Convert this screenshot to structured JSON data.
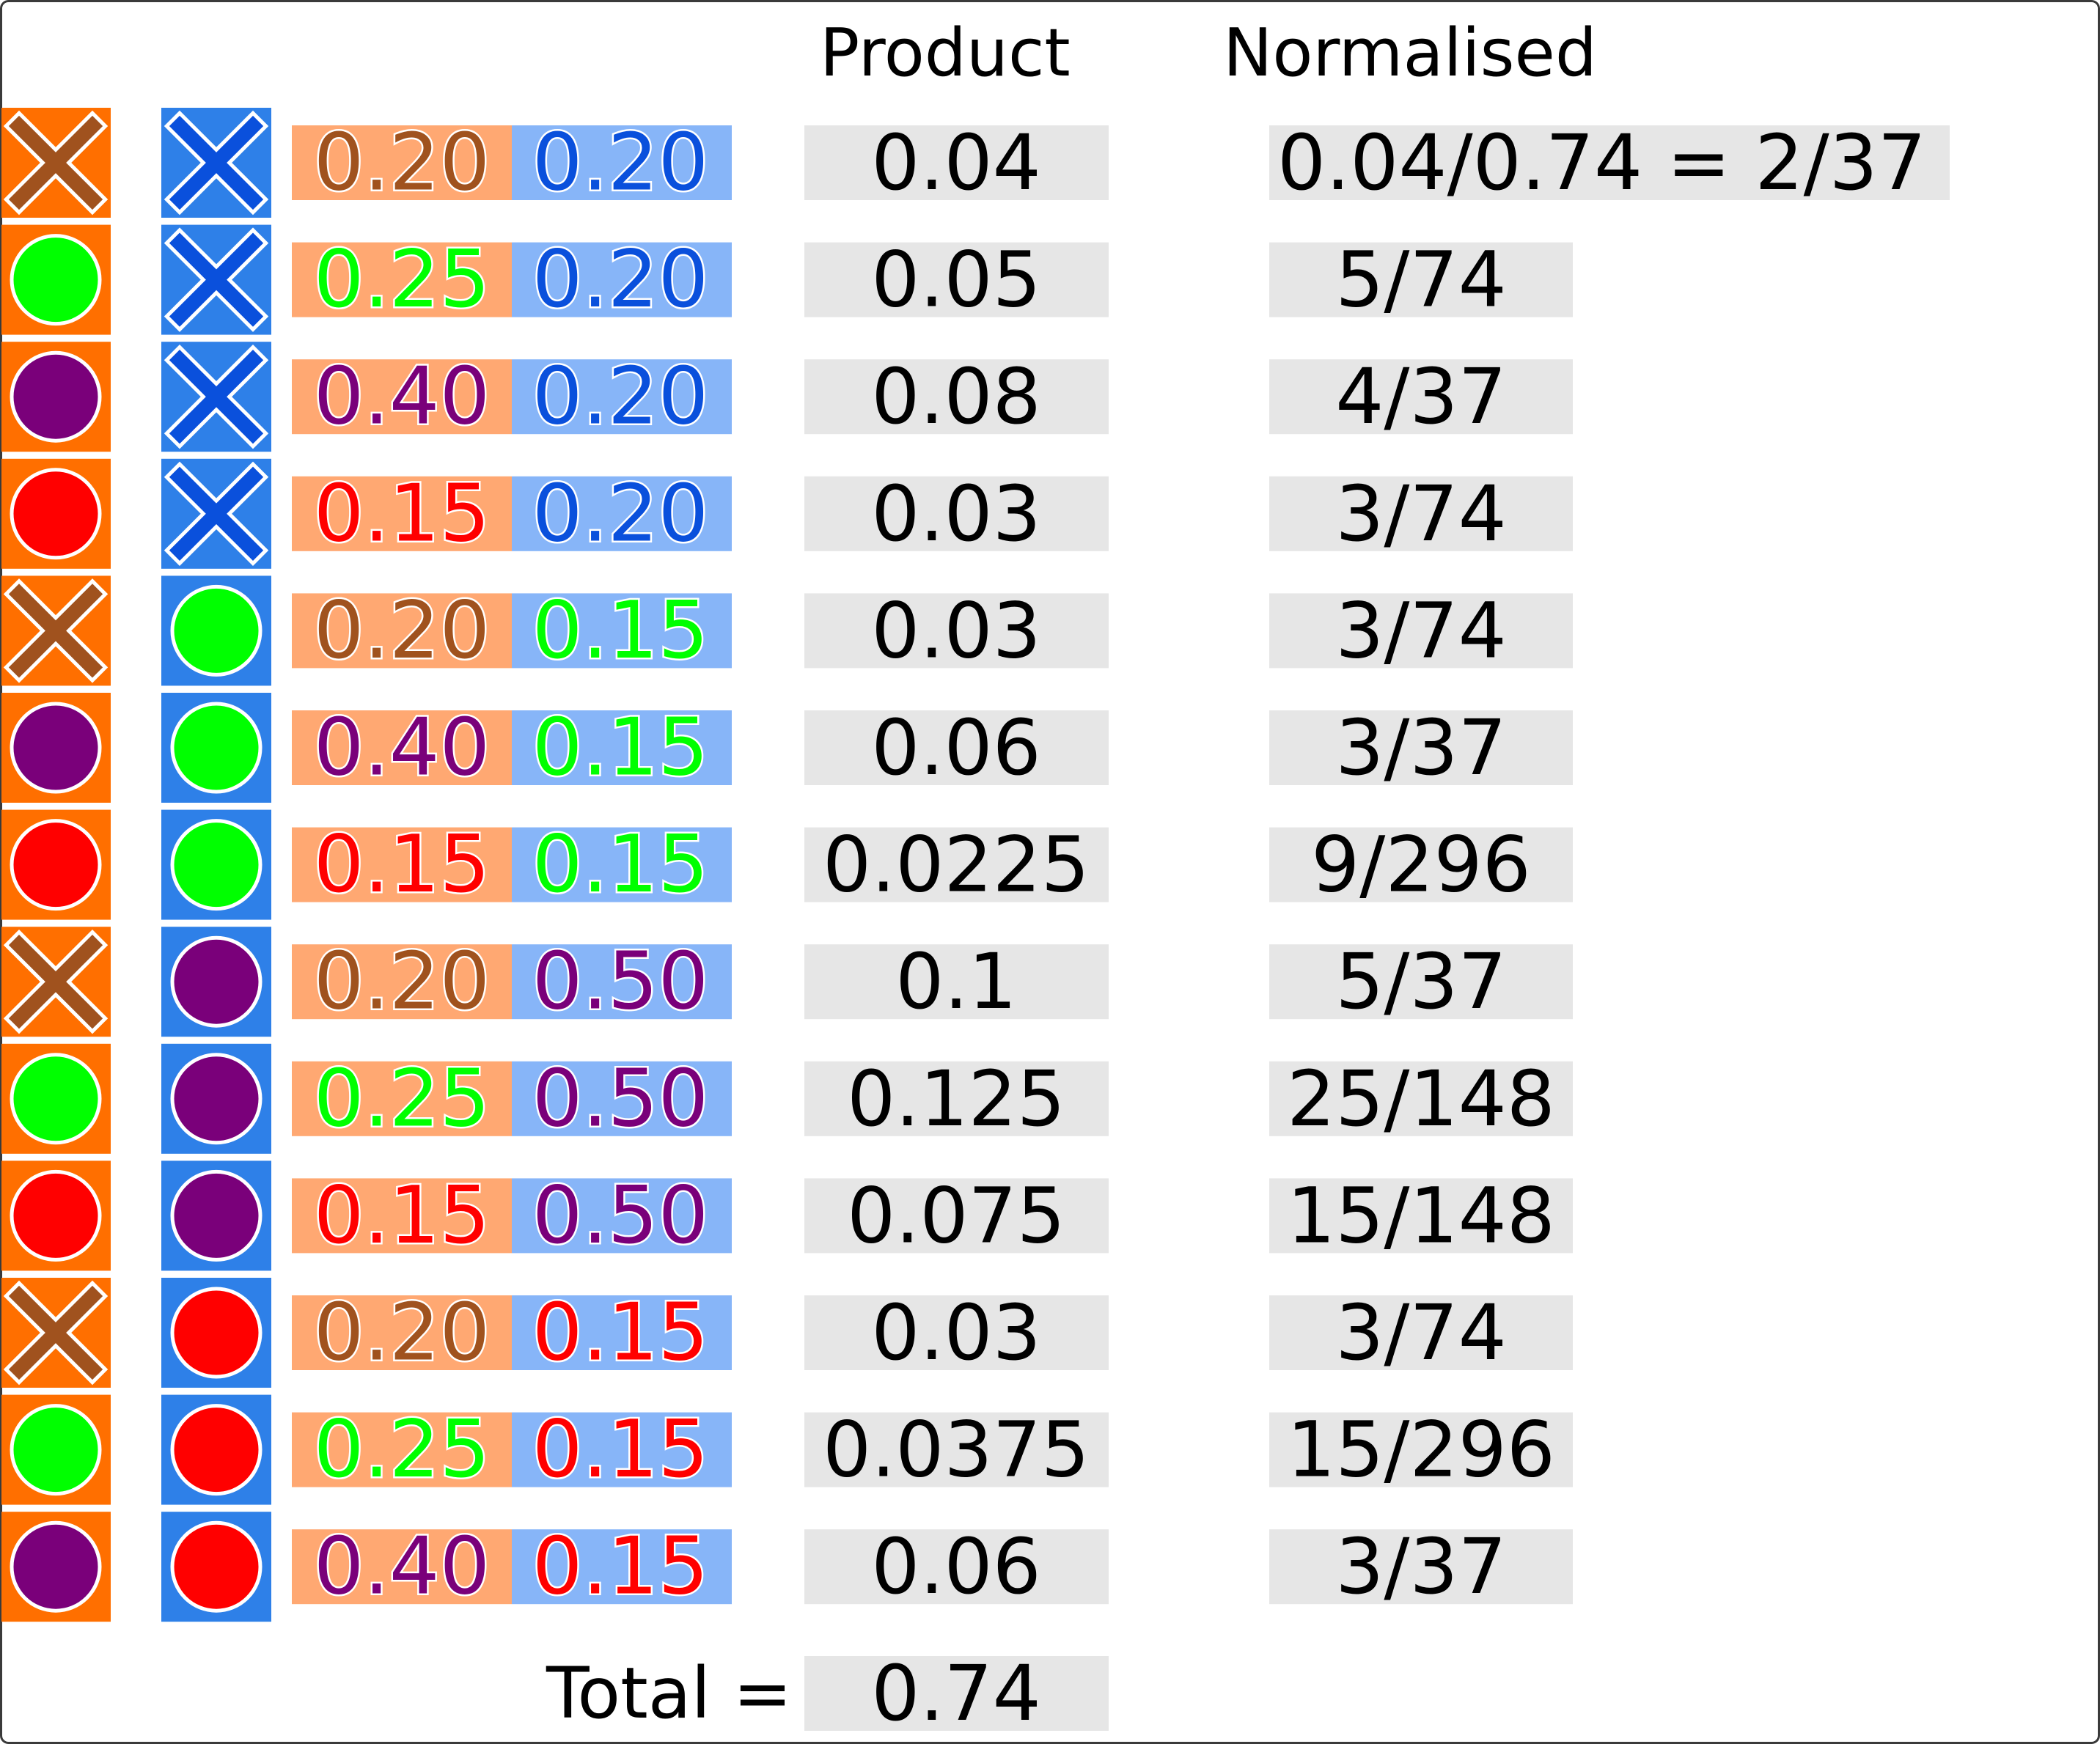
{
  "headers": {
    "product": "Product",
    "normalised": "Normalised"
  },
  "colors": {
    "orange_tile": "#FF6F00",
    "blue_tile": "#2E80E8",
    "orange_cell": "#FFA872",
    "blue_cell": "#87B5F8",
    "grey_cell": "#E6E6E6",
    "border": "#3A3A3A",
    "symbol_colors": {
      "cross-brown": "#A0521E",
      "cross-blue": "#0A50DC",
      "circle-green": "#00FF00",
      "circle-purple": "#7A007A",
      "circle-red": "#FF0000"
    }
  },
  "rows": [
    {
      "first_icon": "cross-brown",
      "second_icon": "cross-blue",
      "first_value": "0.20",
      "second_value": "0.20",
      "product": "0.04",
      "normalised": "0.04/0.74 = 2/37"
    },
    {
      "first_icon": "circle-green",
      "second_icon": "cross-blue",
      "first_value": "0.25",
      "second_value": "0.20",
      "product": "0.05",
      "normalised": "5/74"
    },
    {
      "first_icon": "circle-purple",
      "second_icon": "cross-blue",
      "first_value": "0.40",
      "second_value": "0.20",
      "product": "0.08",
      "normalised": "4/37"
    },
    {
      "first_icon": "circle-red",
      "second_icon": "cross-blue",
      "first_value": "0.15",
      "second_value": "0.20",
      "product": "0.03",
      "normalised": "3/74"
    },
    {
      "first_icon": "cross-brown",
      "second_icon": "circle-green",
      "first_value": "0.20",
      "second_value": "0.15",
      "product": "0.03",
      "normalised": "3/74"
    },
    {
      "first_icon": "circle-purple",
      "second_icon": "circle-green",
      "first_value": "0.40",
      "second_value": "0.15",
      "product": "0.06",
      "normalised": "3/37"
    },
    {
      "first_icon": "circle-red",
      "second_icon": "circle-green",
      "first_value": "0.15",
      "second_value": "0.15",
      "product": "0.0225",
      "normalised": "9/296"
    },
    {
      "first_icon": "cross-brown",
      "second_icon": "circle-purple",
      "first_value": "0.20",
      "second_value": "0.50",
      "product": "0.1",
      "normalised": "5/37"
    },
    {
      "first_icon": "circle-green",
      "second_icon": "circle-purple",
      "first_value": "0.25",
      "second_value": "0.50",
      "product": "0.125",
      "normalised": "25/148"
    },
    {
      "first_icon": "circle-red",
      "second_icon": "circle-purple",
      "first_value": "0.15",
      "second_value": "0.50",
      "product": "0.075",
      "normalised": "15/148"
    },
    {
      "first_icon": "cross-brown",
      "second_icon": "circle-red",
      "first_value": "0.20",
      "second_value": "0.15",
      "product": "0.03",
      "normalised": "3/74"
    },
    {
      "first_icon": "circle-green",
      "second_icon": "circle-red",
      "first_value": "0.25",
      "second_value": "0.15",
      "product": "0.0375",
      "normalised": "15/296"
    },
    {
      "first_icon": "circle-purple",
      "second_icon": "circle-red",
      "first_value": "0.40",
      "second_value": "0.15",
      "product": "0.06",
      "normalised": "3/37"
    }
  ],
  "total": {
    "label": "Total =",
    "value": "0.74"
  }
}
